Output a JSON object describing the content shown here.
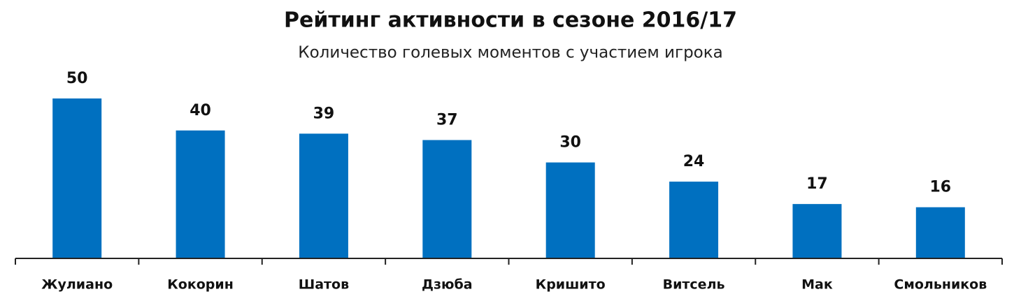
{
  "chart_data": {
    "type": "bar",
    "title": "Рейтинг активности в сезоне 2016/17",
    "subtitle": "Количество голевых моментов с участием игрока",
    "categories": [
      "Жулиано",
      "Кокорин",
      "Шатов",
      "Дзюба",
      "Кришито",
      "Витсель",
      "Мак",
      "Смольников"
    ],
    "values": [
      50,
      40,
      39,
      37,
      30,
      24,
      17,
      16
    ],
    "color": "#0070c0",
    "ylim": [
      0,
      50
    ]
  }
}
